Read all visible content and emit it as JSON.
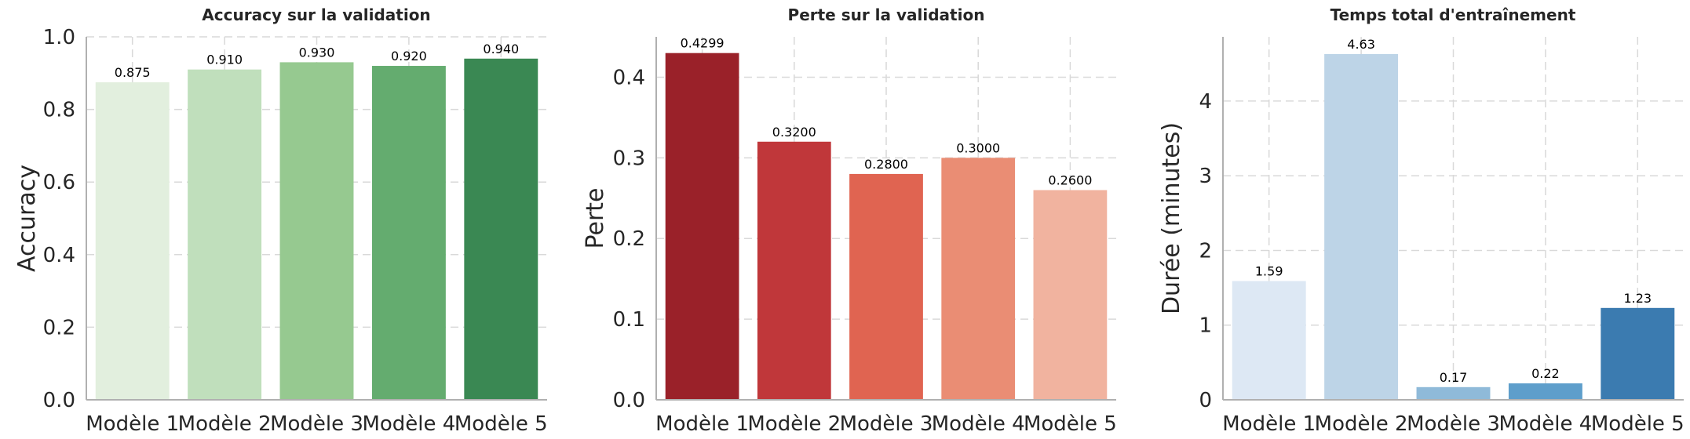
{
  "chart_data": [
    {
      "type": "bar",
      "title": "Accuracy sur la validation",
      "xlabel": "",
      "ylabel": "Accuracy",
      "categories": [
        "Modèle 1",
        "Modèle 2",
        "Modèle 3",
        "Modèle 4",
        "Modèle 5"
      ],
      "values": [
        0.875,
        0.91,
        0.93,
        0.92,
        0.94
      ],
      "value_labels": [
        "0.875",
        "0.910",
        "0.930",
        "0.920",
        "0.940"
      ],
      "ylim": [
        0,
        1.0
      ],
      "yticks": [
        0.0,
        0.2,
        0.4,
        0.6,
        0.8,
        1.0
      ],
      "ytick_labels": [
        "0.0",
        "0.2",
        "0.4",
        "0.6",
        "0.8",
        "1.0"
      ],
      "grid": true,
      "colors": [
        "#e2efde",
        "#c0dfbc",
        "#96c990",
        "#64ac6f",
        "#3a8853"
      ]
    },
    {
      "type": "bar",
      "title": "Perte sur la validation",
      "xlabel": "",
      "ylabel": "Perte",
      "categories": [
        "Modèle 1",
        "Modèle 2",
        "Modèle 3",
        "Modèle 4",
        "Modèle 5"
      ],
      "values": [
        0.4299,
        0.32,
        0.28,
        0.3,
        0.26
      ],
      "value_labels": [
        "0.4299",
        "0.3200",
        "0.2800",
        "0.3000",
        "0.2600"
      ],
      "ylim": [
        0,
        0.45
      ],
      "yticks": [
        0.0,
        0.1,
        0.2,
        0.3,
        0.4
      ],
      "ytick_labels": [
        "0.0",
        "0.1",
        "0.2",
        "0.3",
        "0.4"
      ],
      "grid": true,
      "colors": [
        "#9a2129",
        "#c0373a",
        "#e06451",
        "#ea8d74",
        "#f1b39f"
      ]
    },
    {
      "type": "bar",
      "title": "Temps total d'entraînement",
      "xlabel": "",
      "ylabel": "Durée (minutes)",
      "categories": [
        "Modèle 1",
        "Modèle 2",
        "Modèle 3",
        "Modèle 4",
        "Modèle 5"
      ],
      "values": [
        1.59,
        4.63,
        0.17,
        0.22,
        1.23
      ],
      "value_labels": [
        "1.59",
        "4.63",
        "0.17",
        "0.22",
        "1.23"
      ],
      "ylim": [
        0,
        4.86
      ],
      "yticks": [
        0,
        1,
        2,
        3,
        4
      ],
      "ytick_labels": [
        "0",
        "1",
        "2",
        "3",
        "4"
      ],
      "grid": true,
      "colors": [
        "#dde8f4",
        "#bdd4e7",
        "#8fbad9",
        "#5e9ecb",
        "#3b7bb0"
      ]
    }
  ]
}
